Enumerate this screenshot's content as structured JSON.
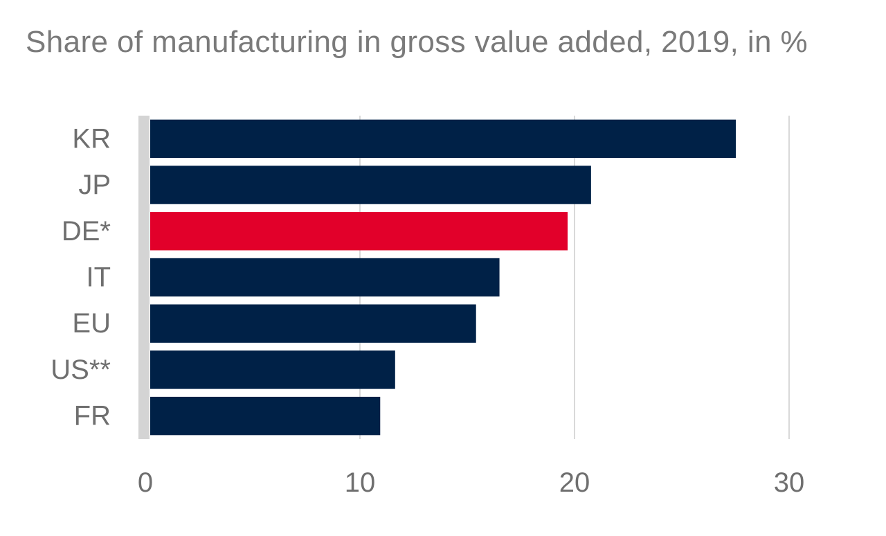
{
  "chart_data": {
    "type": "bar",
    "orientation": "horizontal",
    "title": "Share of manufacturing in gross value added, 2019, in %",
    "categories": [
      "KR",
      "JP",
      "DE*",
      "IT",
      "EU",
      "US**",
      "FR"
    ],
    "values": [
      27.5,
      20.7,
      19.6,
      16.4,
      15.3,
      11.5,
      10.8
    ],
    "highlight_category": "DE*",
    "xlim": [
      0,
      30
    ],
    "xticks": [
      0,
      10,
      20,
      30
    ],
    "xlabel": "",
    "ylabel": "",
    "grid": true,
    "colors": {
      "bar": "#002147",
      "highlight": "#e2002a",
      "grid": "#d9d9d9",
      "axis": "#d4d4d4",
      "text": "#6f6f6f"
    }
  }
}
